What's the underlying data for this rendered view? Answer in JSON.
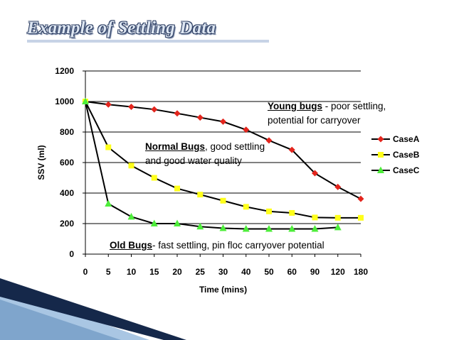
{
  "slide": {
    "title": "Example of Settling Data"
  },
  "colors": {
    "caseA": "#e3251d",
    "caseB": "#ffff1a",
    "caseC": "#4ded3a",
    "line": "#000000",
    "title_fill": "#dde6f2",
    "title_outline": "#2e3f63",
    "corner_dark": "#15284a",
    "corner_light": "#a9c6e3"
  },
  "annotations": {
    "young": {
      "lead": "Young bugs",
      "rest": " - poor settling,",
      "line2": "potential for carryover"
    },
    "normal": {
      "lead": "Normal Bugs",
      "rest": ", good settling",
      "line2": "and good water quality"
    },
    "old": {
      "lead": "Old Bugs",
      "rest": "- fast settling, pin floc carryover potential"
    }
  },
  "chart_data": {
    "type": "line",
    "xlabel": "Time (mins)",
    "ylabel": "SSV (ml)",
    "categories": [
      "0",
      "5",
      "10",
      "15",
      "20",
      "25",
      "30",
      "40",
      "50",
      "60",
      "90",
      "120",
      "180"
    ],
    "ylim": [
      0,
      1200
    ],
    "yticks": [
      0,
      200,
      400,
      600,
      800,
      1000,
      1200
    ],
    "grid": "horizontal",
    "legend_position": "right",
    "series": [
      {
        "name": "CaseA",
        "marker": "diamond",
        "color": "#e3251d",
        "values": [
          1000,
          980,
          965,
          948,
          922,
          895,
          868,
          815,
          745,
          683,
          530,
          440,
          362
        ]
      },
      {
        "name": "CaseB",
        "marker": "square",
        "color": "#ffff1a",
        "values": [
          1000,
          700,
          580,
          500,
          430,
          390,
          350,
          310,
          280,
          270,
          240,
          238,
          238
        ]
      },
      {
        "name": "CaseC",
        "marker": "triangle",
        "color": "#4ded3a",
        "values": [
          1000,
          330,
          245,
          200,
          200,
          180,
          170,
          165,
          165,
          165,
          165,
          175,
          null
        ]
      }
    ]
  }
}
